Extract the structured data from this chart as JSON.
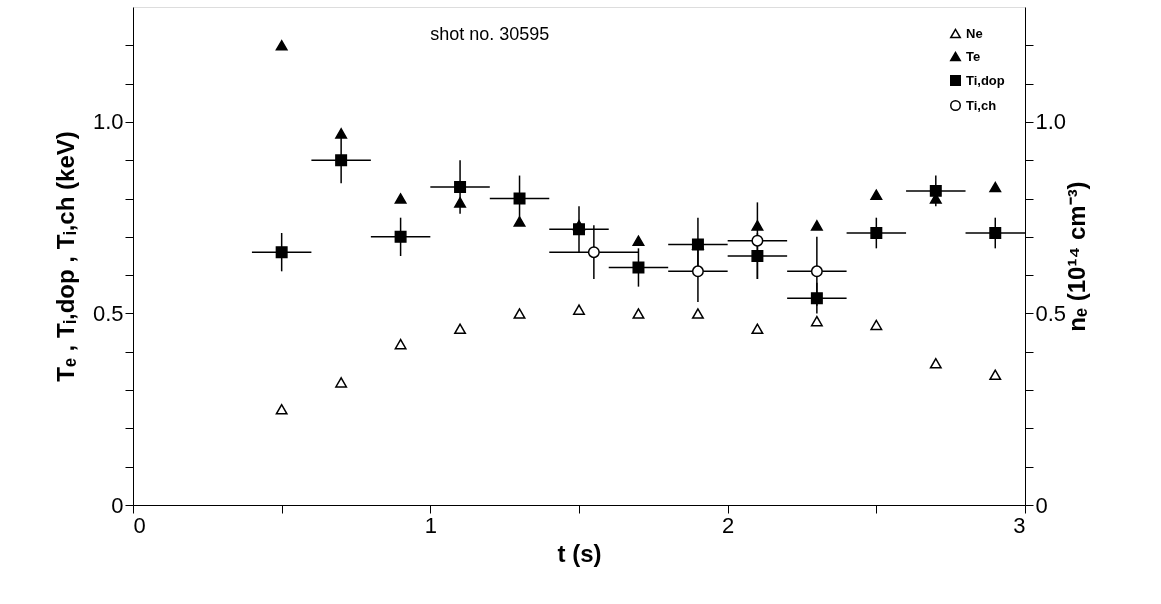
{
  "chart_data": {
    "type": "scatter",
    "title": "shot no.  30595",
    "xlabel": "t  (s)",
    "ylabel": "Tₑ , Tᵢ,dop , Tᵢ,ch  (keV)",
    "y2label": "nₑ  (10¹⁴ cm⁻³)",
    "xlim": [
      0,
      3
    ],
    "xticks": [
      0,
      {
        "value": 0.5,
        "label": null
      },
      1,
      {
        "value": 1.5,
        "label": null
      },
      2,
      {
        "value": 2.5,
        "label": null
      },
      3
    ],
    "ylim": [
      0,
      1.3
    ],
    "yticks": [
      0,
      {
        "value": 0.1,
        "label": null
      },
      {
        "value": 0.2,
        "label": null
      },
      {
        "value": 0.3,
        "label": null
      },
      {
        "value": 0.4,
        "label": null
      },
      0.5,
      {
        "value": 0.6,
        "label": null
      },
      {
        "value": 0.7,
        "label": null
      },
      {
        "value": 0.8,
        "label": null
      },
      {
        "value": 0.9,
        "label": null
      },
      {
        "value": 1,
        "label": "1.0"
      },
      {
        "value": 1.1,
        "label": null
      },
      {
        "value": 1.2,
        "label": null
      }
    ],
    "y2lim": [
      0,
      1.3
    ],
    "y2ticks": [
      0,
      {
        "value": 0.1,
        "label": null
      },
      {
        "value": 0.2,
        "label": null
      },
      {
        "value": 0.3,
        "label": null
      },
      {
        "value": 0.4,
        "label": null
      },
      0.5,
      {
        "value": 0.6,
        "label": null
      },
      {
        "value": 0.7,
        "label": null
      },
      {
        "value": 0.8,
        "label": null
      },
      {
        "value": 0.9,
        "label": null
      },
      {
        "value": 1,
        "label": "1.0"
      },
      {
        "value": 1.1,
        "label": null
      },
      {
        "value": 1.2,
        "label": null
      }
    ],
    "grid": false,
    "legend": "top right",
    "series": [
      {
        "name": "Ne",
        "color": "#ffffff",
        "marker": "triangle",
        "axis": "y2",
        "x": [
          0.5,
          0.7,
          0.9,
          1.1,
          1.3,
          1.5,
          1.7,
          1.9,
          2.1,
          2.3,
          2.5,
          2.7,
          2.9
        ],
        "values": [
          0.25,
          0.32,
          0.42,
          0.46,
          0.5,
          0.51,
          0.5,
          0.5,
          0.46,
          0.48,
          0.47,
          0.37,
          0.34
        ]
      },
      {
        "name": "Te",
        "color": "#000000",
        "marker": "triangle",
        "x": [
          0.5,
          0.7,
          0.9,
          1.1,
          1.3,
          1.5,
          1.7,
          1.9,
          2.1,
          2.3,
          2.5,
          2.7,
          2.9
        ],
        "values": [
          1.2,
          0.97,
          0.8,
          0.79,
          0.74,
          0.73,
          0.69,
          0.68,
          0.73,
          0.73,
          0.81,
          0.8,
          0.83
        ]
      },
      {
        "name": "Ti,dop",
        "color": "#000000",
        "marker": "square",
        "x": [
          0.5,
          0.7,
          0.9,
          1.1,
          1.3,
          1.5,
          1.7,
          1.9,
          2.1,
          2.3,
          2.5,
          2.7,
          2.9
        ],
        "values": [
          0.66,
          0.9,
          0.7,
          0.83,
          0.8,
          0.72,
          0.62,
          0.68,
          0.65,
          0.54,
          0.71,
          0.82,
          0.71
        ],
        "errors": [
          0.05,
          0.06,
          0.05,
          0.07,
          0.06,
          0.06,
          0.05,
          0.07,
          0.06,
          0.04,
          0.04,
          0.04,
          0.04
        ],
        "xerrors": [
          0.1,
          0.1,
          0.1,
          0.1,
          0.1,
          0.1,
          0.1,
          0.1,
          0.1,
          0.1,
          0.1,
          0.1,
          0.1
        ]
      },
      {
        "name": "Ti,ch",
        "color": "#ffffff",
        "marker": "circle",
        "x": [
          1.55,
          1.9,
          2.1,
          2.3
        ],
        "values": [
          0.66,
          0.61,
          0.69,
          0.61
        ],
        "errors": [
          0.07,
          0.08,
          0.1,
          0.09
        ],
        "xerrors": [
          0.15,
          0.1,
          0.1,
          0.1
        ]
      }
    ]
  }
}
